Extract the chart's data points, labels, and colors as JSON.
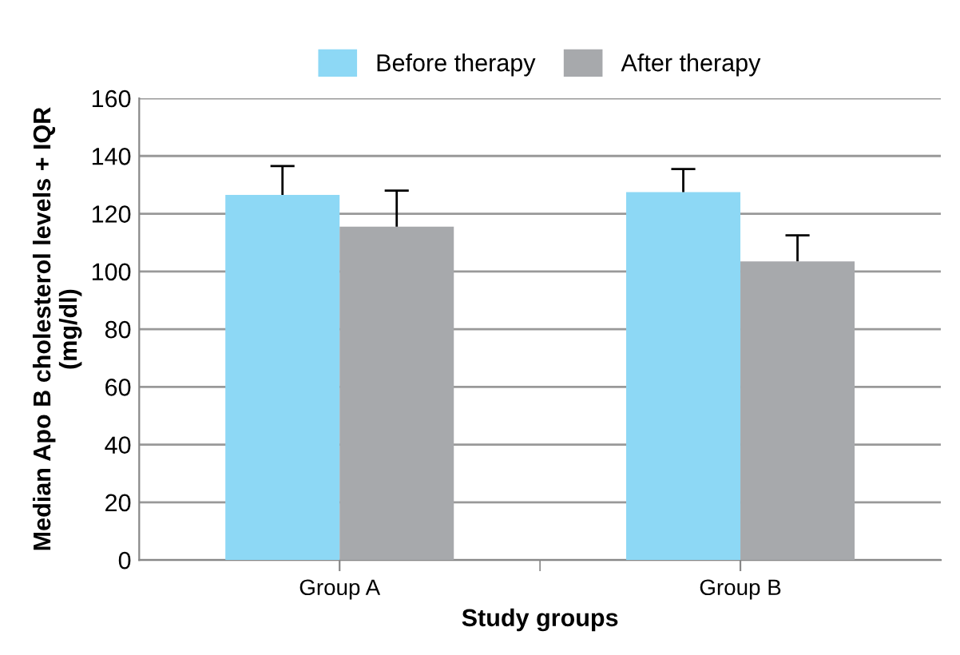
{
  "chart_data": {
    "type": "bar",
    "xlabel": "Study groups",
    "ylabel": "Median Apo B cholesterol levels + IQR\n(mg/dl)",
    "categories": [
      "Group A",
      "Group B"
    ],
    "series": [
      {
        "name": "Before therapy",
        "color": "#8dd8f5",
        "values": [
          126.5,
          127.5
        ],
        "errors": [
          [
            126.5,
            136.5
          ],
          [
            127.5,
            135.5
          ]
        ]
      },
      {
        "name": "After therapy",
        "color": "#a7a9ac",
        "values": [
          115.5,
          103.5
        ],
        "errors": [
          [
            115.5,
            128
          ],
          [
            103.5,
            112.5
          ]
        ]
      }
    ],
    "ylim": [
      0,
      160
    ],
    "yticks": [
      0,
      20,
      40,
      60,
      80,
      100,
      120,
      140,
      160
    ],
    "grid": "y",
    "legend": "top"
  }
}
